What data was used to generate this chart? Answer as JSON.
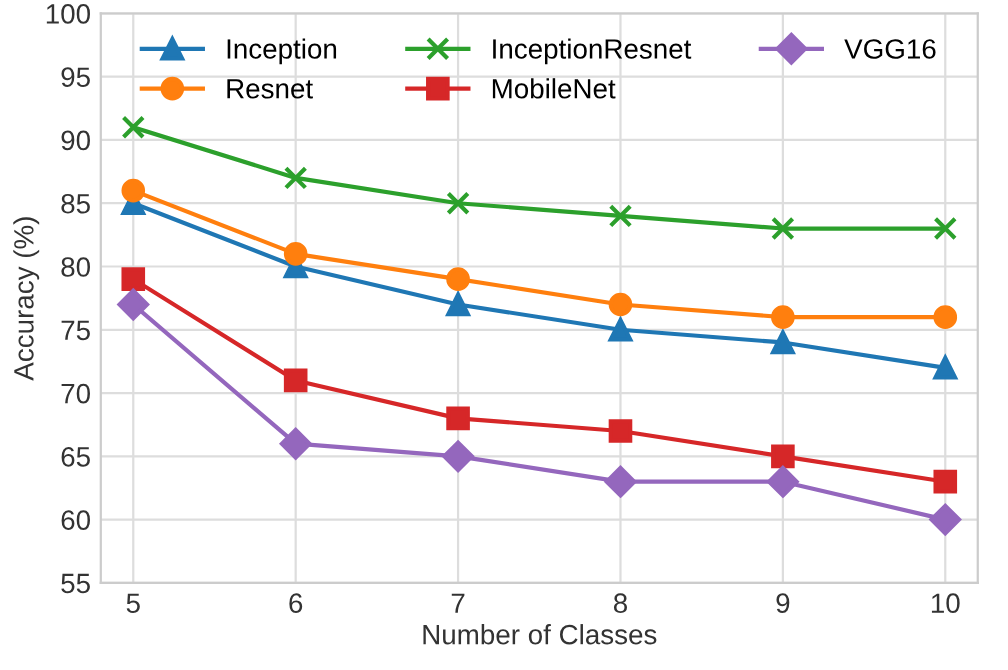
{
  "chart_data": {
    "type": "line",
    "xlabel": "Number of Classes",
    "ylabel": "Accuracy (%)",
    "x": [
      5,
      6,
      7,
      8,
      9,
      10
    ],
    "series": [
      {
        "name": "Inception",
        "color": "#1f77b4",
        "marker": "triangle",
        "values": [
          85,
          80,
          77,
          75,
          74,
          72
        ]
      },
      {
        "name": "Resnet",
        "color": "#ff7f0e",
        "marker": "circle",
        "values": [
          86,
          81,
          79,
          77,
          76,
          76
        ]
      },
      {
        "name": "InceptionResnet",
        "color": "#2ca02c",
        "marker": "cross",
        "values": [
          91,
          87,
          85,
          84,
          83,
          83
        ]
      },
      {
        "name": "MobileNet",
        "color": "#d62728",
        "marker": "square",
        "values": [
          79,
          71,
          68,
          67,
          65,
          63
        ]
      },
      {
        "name": "VGG16",
        "color": "#9467bd",
        "marker": "diamond",
        "values": [
          77,
          66,
          65,
          63,
          63,
          60
        ]
      }
    ],
    "xlim": [
      4.8,
      10.2
    ],
    "xticks": [
      5,
      6,
      7,
      8,
      9,
      10
    ],
    "ylim": [
      55,
      100
    ],
    "yticks": [
      55,
      60,
      65,
      70,
      75,
      80,
      85,
      90,
      95,
      100
    ],
    "grid": true,
    "legend": "top",
    "line_style": "solid"
  }
}
